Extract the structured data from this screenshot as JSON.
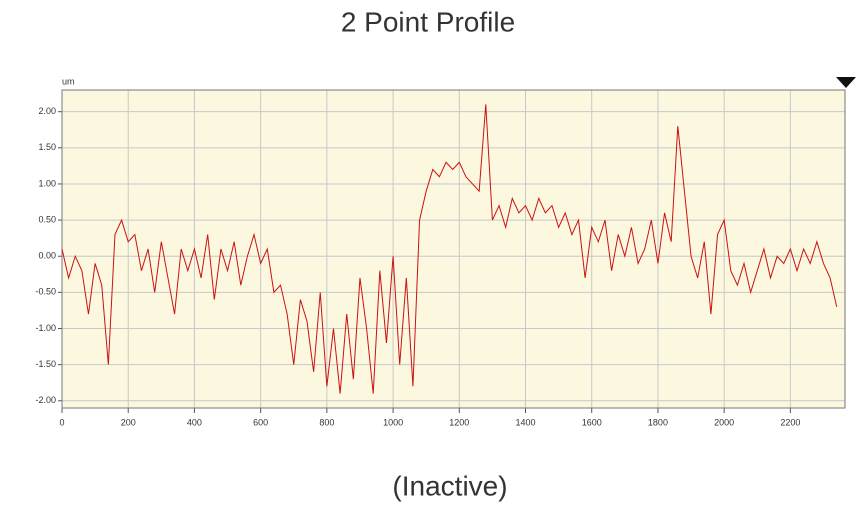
{
  "chart_data": {
    "type": "line",
    "title": "2 Point Profile",
    "y_unit": "um",
    "status": "(Inactive)",
    "x": [
      0,
      20,
      40,
      60,
      80,
      100,
      120,
      140,
      160,
      180,
      200,
      220,
      240,
      260,
      280,
      300,
      320,
      340,
      360,
      380,
      400,
      420,
      440,
      460,
      480,
      500,
      520,
      540,
      560,
      580,
      600,
      620,
      640,
      660,
      680,
      700,
      720,
      740,
      760,
      780,
      800,
      820,
      840,
      860,
      880,
      900,
      920,
      940,
      960,
      980,
      1000,
      1020,
      1040,
      1060,
      1080,
      1100,
      1120,
      1140,
      1160,
      1180,
      1200,
      1220,
      1240,
      1260,
      1280,
      1300,
      1320,
      1340,
      1360,
      1380,
      1400,
      1420,
      1440,
      1460,
      1480,
      1500,
      1520,
      1540,
      1560,
      1580,
      1600,
      1620,
      1640,
      1660,
      1680,
      1700,
      1720,
      1740,
      1760,
      1780,
      1800,
      1820,
      1840,
      1860,
      1880,
      1900,
      1920,
      1940,
      1960,
      1980,
      2000,
      2020,
      2040,
      2060,
      2080,
      2100,
      2120,
      2140,
      2160,
      2180,
      2200,
      2220,
      2240,
      2260,
      2280,
      2300,
      2320,
      2340
    ],
    "series": [
      {
        "color": "#cc1111",
        "values": [
          0.1,
          -0.3,
          0.0,
          -0.2,
          -0.8,
          -0.1,
          -0.4,
          -1.5,
          0.3,
          0.5,
          0.2,
          0.3,
          -0.2,
          0.1,
          -0.5,
          0.2,
          -0.3,
          -0.8,
          0.1,
          -0.2,
          0.1,
          -0.3,
          0.3,
          -0.6,
          0.1,
          -0.2,
          0.2,
          -0.4,
          0.0,
          0.3,
          -0.1,
          0.1,
          -0.5,
          -0.4,
          -0.8,
          -1.5,
          -0.6,
          -0.9,
          -1.6,
          -0.5,
          -1.8,
          -1.0,
          -1.9,
          -0.8,
          -1.7,
          -0.3,
          -1.0,
          -1.9,
          -0.2,
          -1.2,
          0.0,
          -1.5,
          -0.3,
          -1.8,
          0.5,
          0.9,
          1.2,
          1.1,
          1.3,
          1.2,
          1.3,
          1.1,
          1.0,
          0.9,
          2.1,
          0.5,
          0.7,
          0.4,
          0.8,
          0.6,
          0.7,
          0.5,
          0.8,
          0.6,
          0.7,
          0.4,
          0.6,
          0.3,
          0.5,
          -0.3,
          0.4,
          0.2,
          0.5,
          -0.2,
          0.3,
          0.0,
          0.4,
          -0.1,
          0.1,
          0.5,
          -0.1,
          0.6,
          0.2,
          1.8,
          0.9,
          0.0,
          -0.3,
          0.2,
          -0.8,
          0.3,
          0.5,
          -0.2,
          -0.4,
          -0.1,
          -0.5,
          -0.2,
          0.1,
          -0.3,
          0.0,
          -0.1,
          0.1,
          -0.2,
          0.1,
          -0.1,
          0.2,
          -0.1,
          -0.3,
          -0.7
        ]
      }
    ],
    "xlim": [
      0,
      2365
    ],
    "ylim": [
      -2.1,
      2.3
    ],
    "xticks": [
      0,
      200,
      400,
      600,
      800,
      1000,
      1200,
      1400,
      1600,
      1800,
      2000,
      2200
    ],
    "yticks": [
      {
        "value": 2,
        "label": "2.00"
      },
      {
        "value": 1.5,
        "label": "1.50"
      },
      {
        "value": 1,
        "label": "1.00"
      },
      {
        "value": 0.5,
        "label": "0.50"
      },
      {
        "value": 0,
        "label": "0.00"
      },
      {
        "value": -0.5,
        "label": "-0.50"
      },
      {
        "value": -1,
        "label": "-1.00"
      },
      {
        "value": -1.5,
        "label": "-1.50"
      },
      {
        "value": -2,
        "label": "-2.00"
      }
    ],
    "grid": true
  }
}
